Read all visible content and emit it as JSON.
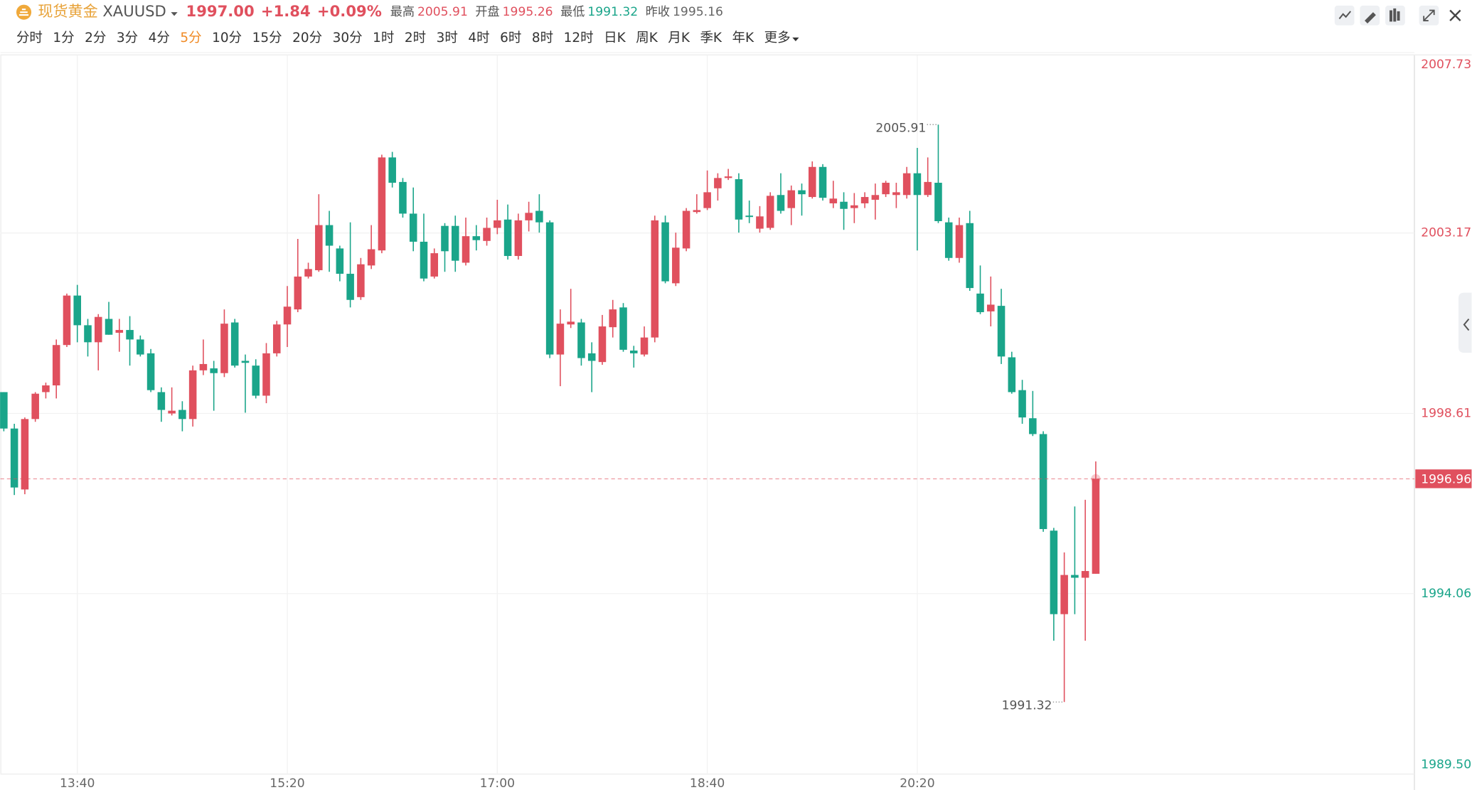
{
  "header": {
    "name": "现货黄金",
    "symbol": "XAUUSD",
    "price": "1997.00",
    "change": "+1.84",
    "change_pct": "+0.09%",
    "quote_color": "#e0505e",
    "stats": [
      {
        "label": "最高",
        "value": "2005.91",
        "color": "#e0505e"
      },
      {
        "label": "开盘",
        "value": "1995.26",
        "color": "#e0505e"
      },
      {
        "label": "最低",
        "value": "1991.32",
        "color": "#1aa58a"
      },
      {
        "label": "昨收",
        "value": "1995.16",
        "color": "#666666"
      }
    ]
  },
  "timeframes": [
    "分时",
    "1分",
    "2分",
    "3分",
    "4分",
    "5分",
    "10分",
    "15分",
    "20分",
    "30分",
    "1时",
    "2时",
    "3时",
    "4时",
    "6时",
    "8时",
    "12时",
    "日K",
    "周K",
    "月K",
    "季K",
    "年K",
    "更多"
  ],
  "active_timeframe": "5分",
  "chart_data": {
    "type": "candlestick",
    "up_color": "#e0505e",
    "down_color": "#1aa58a",
    "grid": true,
    "categories": [
      null,
      null,
      null,
      null,
      null,
      null,
      null,
      "13:40",
      null,
      null,
      null,
      null,
      null,
      null,
      null,
      null,
      null,
      null,
      null,
      null,
      null,
      null,
      null,
      null,
      null,
      null,
      null,
      "15:20",
      null,
      null,
      null,
      null,
      null,
      null,
      null,
      null,
      null,
      null,
      null,
      null,
      null,
      null,
      null,
      null,
      null,
      null,
      null,
      "17:00",
      null,
      null,
      null,
      null,
      null,
      null,
      null,
      null,
      null,
      null,
      null,
      null,
      null,
      null,
      null,
      null,
      null,
      null,
      null,
      "18:40",
      null,
      null,
      null,
      null,
      null,
      null,
      null,
      null,
      null,
      null,
      null,
      null,
      null,
      null,
      null,
      null,
      null,
      null,
      null,
      "20:20",
      null,
      null,
      null,
      null,
      null,
      null,
      null,
      null,
      null,
      null,
      null,
      null,
      null,
      null,
      null,
      null,
      null
    ],
    "open": [
      1999.15,
      1998.23,
      1996.69,
      1998.47,
      1999.15,
      1999.32,
      2000.34,
      2001.59,
      2000.84,
      2000.41,
      2001.0,
      2000.65,
      2000.72,
      2000.48,
      2000.13,
      1999.15,
      1998.61,
      1998.7,
      1998.47,
      1999.7,
      1999.75,
      1999.63,
      2000.91,
      1999.94,
      1999.82,
      1999.06,
      2000.13,
      2000.86,
      2001.24,
      2002.07,
      2002.23,
      2003.37,
      2002.78,
      2002.14,
      2001.55,
      2002.35,
      2002.73,
      2005.08,
      2004.46,
      2003.66,
      2002.95,
      2002.07,
      2003.35,
      2003.35,
      2002.42,
      2003.09,
      2002.97,
      2003.3,
      2003.51,
      2002.59,
      2003.49,
      2003.73,
      2003.44,
      2000.1,
      2000.86,
      2000.91,
      2000.13,
      1999.91,
      2000.79,
      2001.29,
      2000.2,
      2000.1,
      2000.53,
      2003.44,
      2001.9,
      2002.78,
      2003.7,
      2003.8,
      2004.3,
      2004.56,
      2004.53,
      2003.61,
      2003.28,
      2003.3,
      2004.13,
      2003.8,
      2004.25,
      2004.08,
      2004.84,
      2003.92,
      2003.96,
      2003.8,
      2003.92,
      2004.01,
      2004.15,
      2004.13,
      2004.13,
      2004.68,
      2004.13,
      2004.44,
      2003.44,
      2002.54,
      2003.42,
      2001.64,
      2001.19,
      2001.33,
      2000.03,
      1999.2,
      1998.49,
      1998.09,
      1995.65,
      1993.54,
      1994.53,
      1994.46,
      1994.56
    ],
    "high": [
      1999.15,
      1998.35,
      1998.51,
      1999.15,
      1999.39,
      2000.48,
      2001.64,
      2001.86,
      2001.0,
      2001.12,
      2001.43,
      2001.0,
      2001.07,
      2000.58,
      2000.24,
      1999.27,
      1999.27,
      1998.92,
      1999.82,
      2000.48,
      1999.94,
      2001.24,
      2001.0,
      2000.1,
      1999.98,
      2000.39,
      2000.95,
      2001.83,
      2003.02,
      2002.42,
      2004.15,
      2003.73,
      2002.85,
      2003.44,
      2002.54,
      2003.37,
      2005.15,
      2005.22,
      2004.56,
      2004.32,
      2003.66,
      2002.78,
      2003.42,
      2003.61,
      2003.56,
      2003.37,
      2003.56,
      2004.01,
      2003.89,
      2003.66,
      2003.96,
      2004.15,
      2003.49,
      2001.24,
      2001.76,
      2001.0,
      2000.41,
      2001.1,
      2001.48,
      2001.4,
      2000.32,
      2000.81,
      2003.61,
      2003.61,
      2003.18,
      2003.8,
      2004.15,
      2004.75,
      2004.68,
      2004.79,
      2004.68,
      2003.99,
      2003.85,
      2004.2,
      2004.68,
      2004.37,
      2004.42,
      2004.98,
      2004.91,
      2004.49,
      2004.2,
      2004.18,
      2004.2,
      2004.42,
      2004.49,
      2004.44,
      2004.84,
      2005.32,
      2005.08,
      2005.91,
      2003.56,
      2003.56,
      2003.73,
      2002.35,
      2002.07,
      2001.76,
      2000.17,
      1999.46,
      1999.18,
      1998.16,
      1995.72,
      1995.1,
      1996.26,
      1996.43,
      1997.4
    ],
    "low": [
      1998.16,
      1996.55,
      1996.57,
      1998.4,
      1998.99,
      1998.99,
      2000.29,
      2000.41,
      2000.05,
      1999.7,
      2000.6,
      2000.17,
      1999.82,
      2000.05,
      1999.15,
      1998.4,
      1998.56,
      1998.16,
      1998.28,
      1999.58,
      1998.68,
      1999.53,
      1999.77,
      1998.63,
      1998.99,
      1998.87,
      2000.05,
      2000.29,
      2001.17,
      2002.02,
      2002.19,
      2002.19,
      2001.95,
      2001.29,
      2001.48,
      2002.26,
      2002.66,
      2004.32,
      2003.56,
      2002.71,
      2001.95,
      2002.02,
      2002.19,
      2002.19,
      2002.35,
      2002.73,
      2002.85,
      2003.14,
      2002.5,
      2002.5,
      2003.21,
      2003.18,
      2000.01,
      1999.3,
      2000.77,
      1999.82,
      1999.15,
      1999.84,
      2000.53,
      2000.17,
      1999.77,
      2000.05,
      2000.41,
      2001.9,
      2001.83,
      2002.71,
      2003.66,
      2003.75,
      2003.99,
      2004.51,
      2003.18,
      2003.42,
      2003.18,
      2003.25,
      2003.66,
      2003.37,
      2003.61,
      2004.04,
      2003.99,
      2003.8,
      2003.25,
      2003.42,
      2003.8,
      2003.51,
      2004.08,
      2003.8,
      2004.04,
      2002.73,
      2004.08,
      2003.42,
      2002.47,
      2002.42,
      2001.71,
      2001.12,
      2000.81,
      1999.86,
      1999.11,
      1998.35,
      1998.04,
      1995.62,
      1992.87,
      1991.32,
      1993.54,
      1992.87,
      1994.56
    ],
    "close": [
      1998.23,
      1996.74,
      1998.47,
      1999.11,
      1999.32,
      2000.34,
      2001.59,
      2000.84,
      2000.41,
      2001.05,
      2000.6,
      2000.72,
      2000.48,
      2000.1,
      1999.2,
      1998.7,
      1998.68,
      1998.47,
      1999.7,
      1999.86,
      1999.63,
      2000.88,
      1999.82,
      1999.89,
      1999.06,
      2000.13,
      2000.86,
      2001.31,
      2002.07,
      2002.26,
      2003.37,
      2002.85,
      2002.14,
      2001.48,
      2002.38,
      2002.76,
      2005.08,
      2004.44,
      2003.66,
      2002.95,
      2002.02,
      2002.66,
      2002.71,
      2002.47,
      2003.09,
      2002.99,
      2003.3,
      2003.49,
      2002.59,
      2003.49,
      2003.68,
      2003.44,
      2000.1,
      2000.88,
      2000.93,
      2000.01,
      1999.94,
      2000.81,
      2001.24,
      2000.22,
      2000.13,
      2000.53,
      2003.49,
      2001.95,
      2002.8,
      2003.73,
      2003.75,
      2004.2,
      2004.56,
      2004.6,
      2003.51,
      2003.59,
      2003.59,
      2004.11,
      2003.73,
      2004.25,
      2004.15,
      2004.84,
      2004.06,
      2004.04,
      2003.78,
      2003.87,
      2004.08,
      2004.13,
      2004.44,
      2004.2,
      2004.68,
      2004.13,
      2004.46,
      2003.47,
      2002.54,
      2003.37,
      2001.78,
      2001.17,
      2001.36,
      2000.05,
      1999.15,
      1998.51,
      1998.09,
      1995.69,
      1993.54,
      1994.53,
      1994.46,
      1994.63,
      1996.96
    ],
    "ylim": [
      1989.5,
      2007.73
    ],
    "yticks": [
      {
        "value": 1989.5,
        "label": "1989.50"
      },
      1994.06,
      1998.61,
      2003.17,
      2007.73
    ],
    "last_price": 1996.96,
    "annotations": [
      2005.91,
      1991.32
    ]
  }
}
